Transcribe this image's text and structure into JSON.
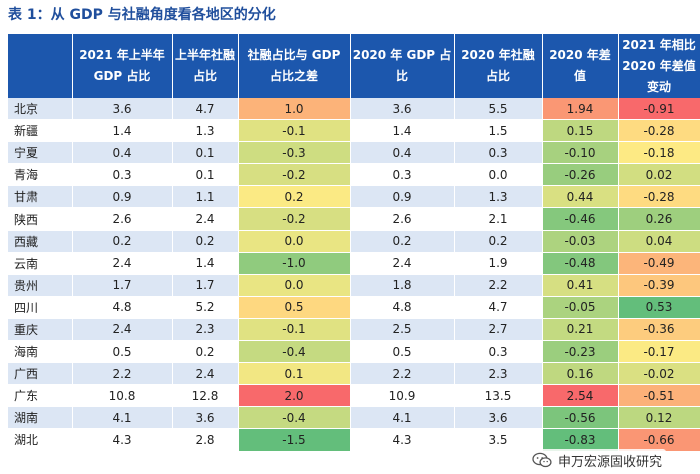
{
  "title": "表 1：从 GDP 与社融角度看各地区的分化",
  "headers": [
    "",
    "2021 年上半年 GDP 占比",
    "上半年社融占比",
    "社融占比与 GDP 占比之差",
    "2020 年 GDP 占比",
    "2020 年社融占比",
    "2020 年差值",
    "2021 年相比 2020 年差值变动"
  ],
  "rows": [
    {
      "region": "北京",
      "gdp_h1": "3.6",
      "sf_h1": "4.7",
      "diff_h1": "1.0",
      "gdp_2020": "3.6",
      "sf_2020": "5.5",
      "diff_2020": "1.94",
      "change": "-0.91"
    },
    {
      "region": "新疆",
      "gdp_h1": "1.4",
      "sf_h1": "1.3",
      "diff_h1": "-0.1",
      "gdp_2020": "1.4",
      "sf_2020": "1.5",
      "diff_2020": "0.15",
      "change": "-0.28"
    },
    {
      "region": "宁夏",
      "gdp_h1": "0.4",
      "sf_h1": "0.1",
      "diff_h1": "-0.3",
      "gdp_2020": "0.4",
      "sf_2020": "0.3",
      "diff_2020": "-0.10",
      "change": "-0.18"
    },
    {
      "region": "青海",
      "gdp_h1": "0.3",
      "sf_h1": "0.1",
      "diff_h1": "-0.2",
      "gdp_2020": "0.3",
      "sf_2020": "0.0",
      "diff_2020": "-0.26",
      "change": "0.02"
    },
    {
      "region": "甘肃",
      "gdp_h1": "0.9",
      "sf_h1": "1.1",
      "diff_h1": "0.2",
      "gdp_2020": "0.9",
      "sf_2020": "1.3",
      "diff_2020": "0.44",
      "change": "-0.28"
    },
    {
      "region": "陕西",
      "gdp_h1": "2.6",
      "sf_h1": "2.4",
      "diff_h1": "-0.2",
      "gdp_2020": "2.6",
      "sf_2020": "2.1",
      "diff_2020": "-0.46",
      "change": "0.26"
    },
    {
      "region": "西藏",
      "gdp_h1": "0.2",
      "sf_h1": "0.2",
      "diff_h1": "0.0",
      "gdp_2020": "0.2",
      "sf_2020": "0.2",
      "diff_2020": "-0.03",
      "change": "0.04"
    },
    {
      "region": "云南",
      "gdp_h1": "2.4",
      "sf_h1": "1.4",
      "diff_h1": "-1.0",
      "gdp_2020": "2.4",
      "sf_2020": "1.9",
      "diff_2020": "-0.48",
      "change": "-0.49"
    },
    {
      "region": "贵州",
      "gdp_h1": "1.7",
      "sf_h1": "1.7",
      "diff_h1": "0.0",
      "gdp_2020": "1.8",
      "sf_2020": "2.2",
      "diff_2020": "0.41",
      "change": "-0.39"
    },
    {
      "region": "四川",
      "gdp_h1": "4.8",
      "sf_h1": "5.2",
      "diff_h1": "0.5",
      "gdp_2020": "4.8",
      "sf_2020": "4.7",
      "diff_2020": "-0.05",
      "change": "0.53"
    },
    {
      "region": "重庆",
      "gdp_h1": "2.4",
      "sf_h1": "2.3",
      "diff_h1": "-0.1",
      "gdp_2020": "2.5",
      "sf_2020": "2.7",
      "diff_2020": "0.21",
      "change": "-0.36"
    },
    {
      "region": "海南",
      "gdp_h1": "0.5",
      "sf_h1": "0.2",
      "diff_h1": "-0.4",
      "gdp_2020": "0.5",
      "sf_2020": "0.3",
      "diff_2020": "-0.23",
      "change": "-0.17"
    },
    {
      "region": "广西",
      "gdp_h1": "2.2",
      "sf_h1": "2.4",
      "diff_h1": "0.1",
      "gdp_2020": "2.2",
      "sf_2020": "2.3",
      "diff_2020": "0.16",
      "change": "-0.02"
    },
    {
      "region": "广东",
      "gdp_h1": "10.8",
      "sf_h1": "12.8",
      "diff_h1": "2.0",
      "gdp_2020": "10.9",
      "sf_2020": "13.5",
      "diff_2020": "2.54",
      "change": "-0.51"
    },
    {
      "region": "湖南",
      "gdp_h1": "4.1",
      "sf_h1": "3.6",
      "diff_h1": "-0.4",
      "gdp_2020": "4.1",
      "sf_2020": "3.6",
      "diff_2020": "-0.56",
      "change": "0.12"
    },
    {
      "region": "湖北",
      "gdp_h1": "4.3",
      "sf_h1": "2.8",
      "diff_h1": "-1.5",
      "gdp_2020": "4.3",
      "sf_2020": "3.5",
      "diff_2020": "-0.83",
      "change": "-0.66"
    }
  ],
  "scale_colors": {
    "low": "#63be7b",
    "mid": "#ffeb84",
    "high": "#f8696b",
    "header_bg": "#1c57ad",
    "stripe": "#dce6f4"
  },
  "watermark": {
    "icon": "wechat-icon",
    "text": "申万宏源固收研究"
  }
}
